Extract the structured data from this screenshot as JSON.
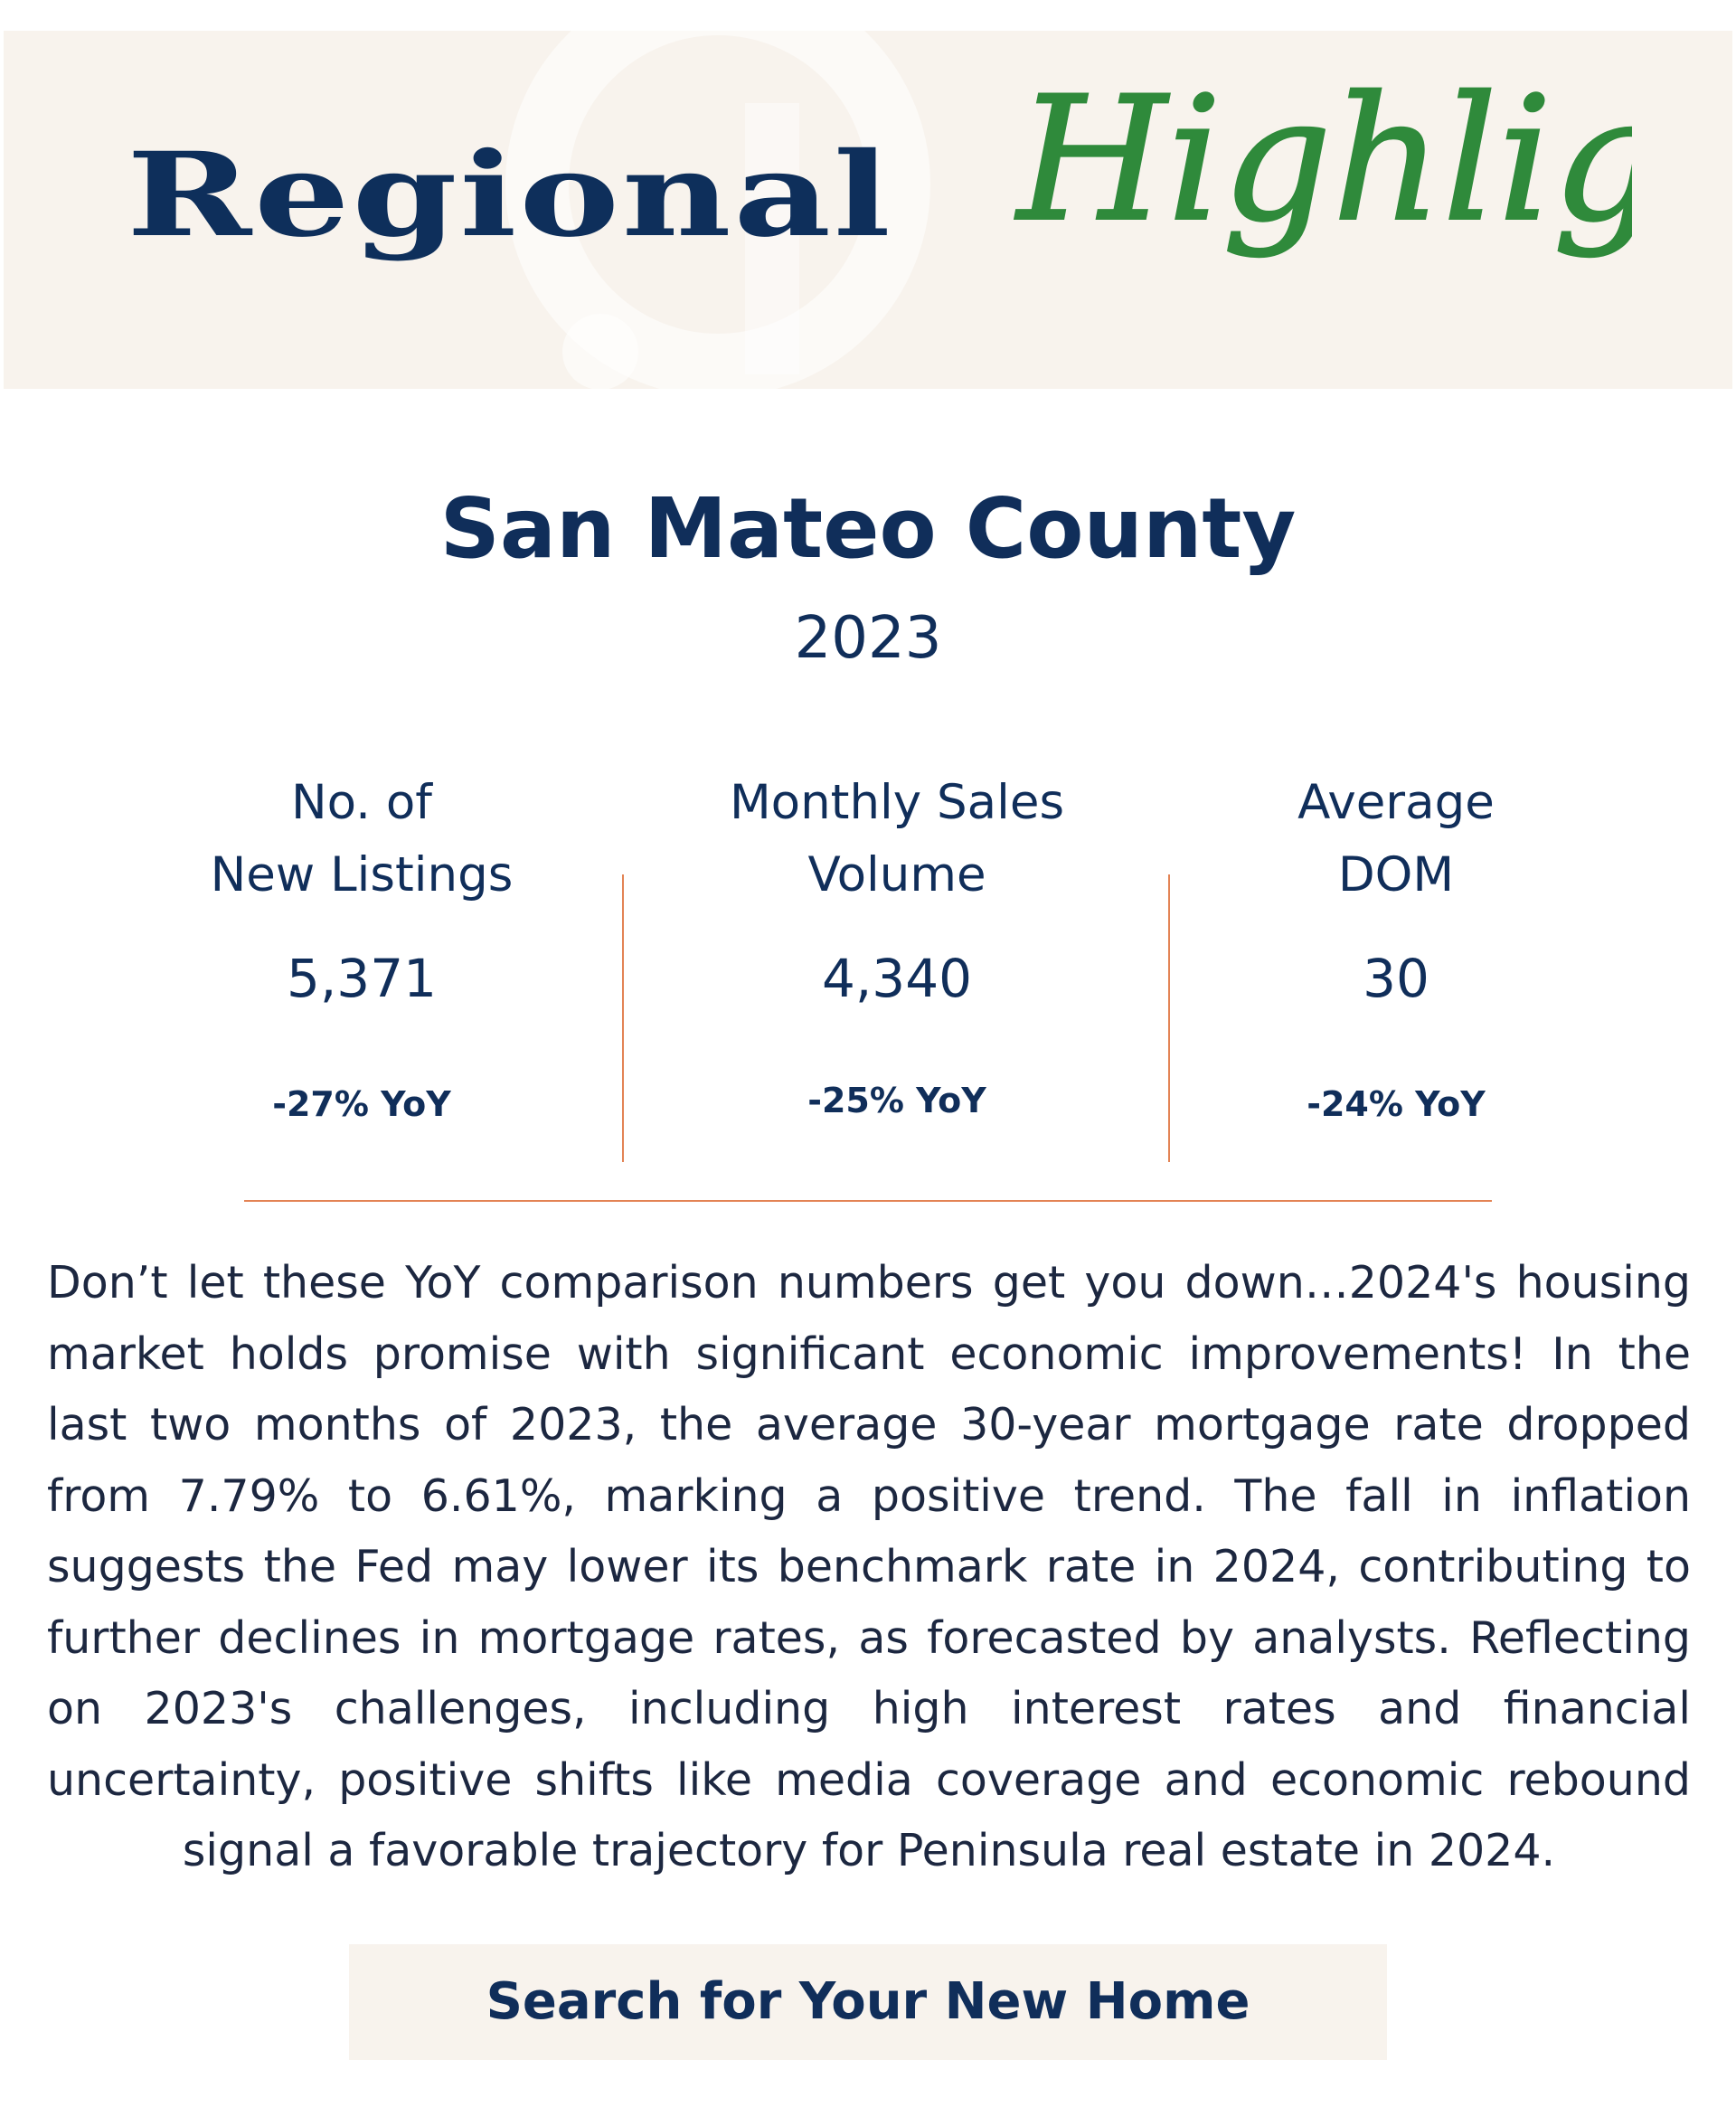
{
  "banner": {
    "word": "Regional",
    "script_word": "Highlight",
    "watermark_icon": "monogram-watermark-icon",
    "background_color": "#f8f3ed",
    "word_color": "#0e2f5b",
    "script_color": "#2f8a3b"
  },
  "header": {
    "title": "San Mateo County",
    "year": "2023"
  },
  "stats": [
    {
      "label": "No. of\nNew Listings",
      "value": "5,371",
      "change": "-27% YoY"
    },
    {
      "label": "Monthly Sales\nVolume",
      "value": "4,340",
      "change": "-25% YoY"
    },
    {
      "label": "Average\nDOM",
      "value": "30",
      "change": "-24% YoY"
    }
  ],
  "body": {
    "paragraph": "Don’t let these YoY comparison numbers get you down…2024's housing market holds promise with significant economic improvements! In the last two months of 2023, the average 30-year mortgage rate dropped from 7.79% to 6.61%, marking a positive trend. The fall in inflation suggests the Fed may lower its benchmark rate in 2024, contributing to further declines in mortgage rates, as forecasted by analysts. Reflecting on 2023's challenges, including high interest rates and financial uncertainty, positive shifts like media coverage and economic rebound signal a favorable trajectory for Peninsula real estate in 2024."
  },
  "cta": {
    "label": "Search for Your New Home"
  },
  "colors": {
    "navy": "#102e5a",
    "divider": "#e38354",
    "cta_background": "#f8f3ed"
  }
}
